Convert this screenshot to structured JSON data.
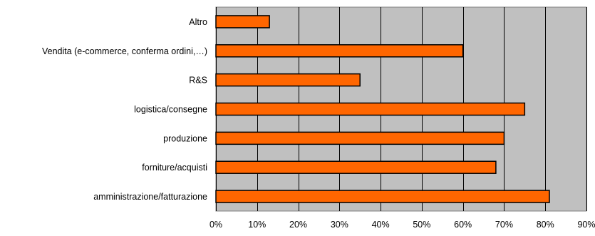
{
  "chart_data": {
    "type": "bar",
    "orientation": "horizontal",
    "categories": [
      "Altro",
      "Vendita (e-commerce, conferma ordini,…)",
      "R&S",
      "logistica/consegne",
      "produzione",
      "forniture/acquisti",
      "amministrazione/fatturazione"
    ],
    "values": [
      13,
      60,
      35,
      75,
      70,
      68,
      81
    ],
    "x_ticks": [
      "0%",
      "10%",
      "20%",
      "30%",
      "40%",
      "50%",
      "60%",
      "70%",
      "80%",
      "90%"
    ],
    "xlim": [
      0,
      90
    ],
    "title": "",
    "xlabel": "",
    "ylabel": "",
    "grid": true,
    "legend": "none",
    "colors": {
      "bar_fill": "#ff6600",
      "bar_stroke": "#000000",
      "plot_background": "#c0c0c0",
      "gridline": "#000000"
    }
  }
}
